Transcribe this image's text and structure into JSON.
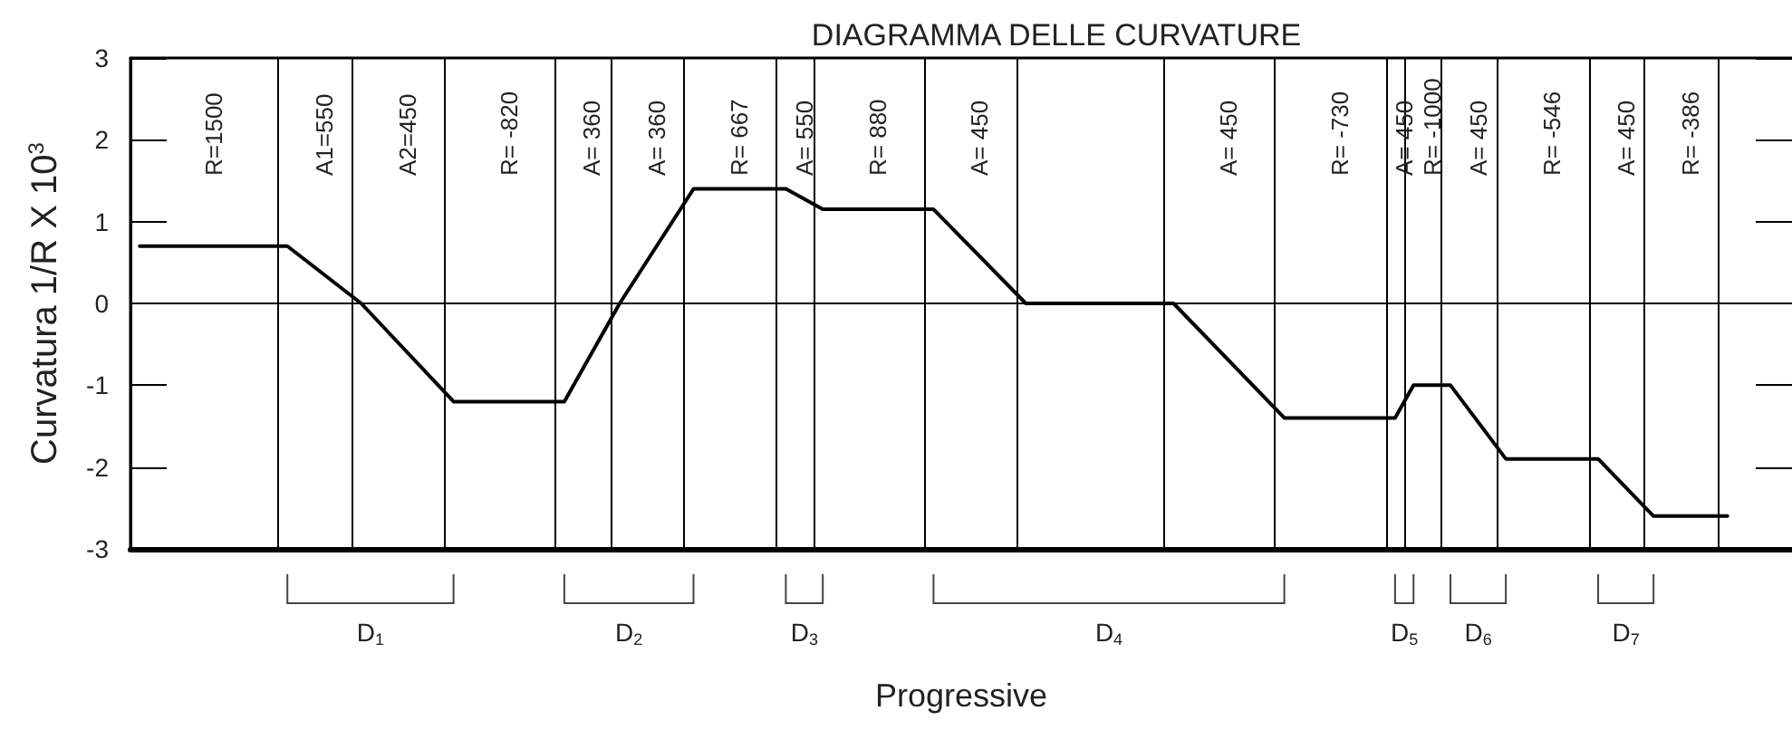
{
  "chart_data": {
    "type": "line",
    "title": "DIAGRAMMA DELLE CURVATURE",
    "xlabel": "Progressive",
    "ylabel": "Curvatura 1/R X 10$^{3}$",
    "categories": [
      null,
      null,
      null,
      null,
      null,
      null,
      null,
      null,
      null,
      null,
      null,
      null,
      null,
      null,
      null,
      null,
      null,
      null,
      null,
      null,
      null,
      null,
      null,
      null,
      null,
      null,
      null,
      null,
      null,
      null,
      null,
      null,
      null,
      null,
      null,
      null,
      null,
      null,
      null,
      null,
      null,
      null,
      null,
      null,
      null,
      null,
      null,
      null,
      null,
      null,
      null,
      null,
      null,
      null,
      null,
      null,
      null,
      null,
      null,
      null,
      null,
      null,
      null,
      null,
      null,
      null,
      null,
      null,
      null,
      null,
      null,
      null,
      null,
      null,
      null,
      null,
      null,
      null,
      null,
      null,
      null,
      null,
      null,
      null,
      null,
      null,
      null,
      null,
      null,
      null
    ],
    "values": [
      0.7,
      null,
      null,
      null,
      null,
      null,
      null,
      null,
      0.7,
      null,
      null,
      null,
      0,
      null,
      null,
      null,
      null,
      -1.2,
      null,
      null,
      null,
      null,
      null,
      -1.2,
      null,
      null,
      0,
      null,
      null,
      null,
      1.4,
      null,
      null,
      null,
      null,
      1.4,
      null,
      1.15,
      null,
      null,
      null,
      null,
      null,
      1.15,
      null,
      null,
      null,
      null,
      0,
      null,
      null,
      null,
      null,
      null,
      null,
      null,
      0,
      null,
      null,
      null,
      null,
      null,
      -1.4,
      null,
      null,
      null,
      null,
      null,
      -1.4,
      -1,
      null,
      -1,
      null,
      null,
      -1.9,
      null,
      null,
      null,
      null,
      -1.9,
      null,
      null,
      -2.6,
      null,
      null,
      null,
      -2.6,
      null,
      null,
      null
    ],
    "color": "#000000",
    "marker": "none",
    "line_style": "solid",
    "ylim": [
      -3,
      3
    ],
    "yticks": [
      -3,
      -2,
      -1,
      0,
      1,
      2,
      3
    ],
    "tick_labels": "y",
    "grid": "x",
    "ref_lines": [
      {
        "axis": "y",
        "value": 0,
        "label": null
      }
    ],
    "annotations": [
      "R=1500",
      "A1=550",
      "A2=450",
      "R= -820",
      "A= 360",
      "A= 360",
      "R= 667",
      "A= 550",
      "R= 880",
      "A= 450",
      null,
      "A= 450",
      "R= -730",
      "A= 450",
      "R= -1000",
      "A= 450",
      "R= -546",
      "A= 450",
      "R= -386",
      "D$_{1}$",
      "D$_{2}$",
      "D$_{3}$",
      "D$_{4}$",
      "D$_{5}$",
      "D$_{6}$",
      "D$_{7}$"
    ]
  }
}
